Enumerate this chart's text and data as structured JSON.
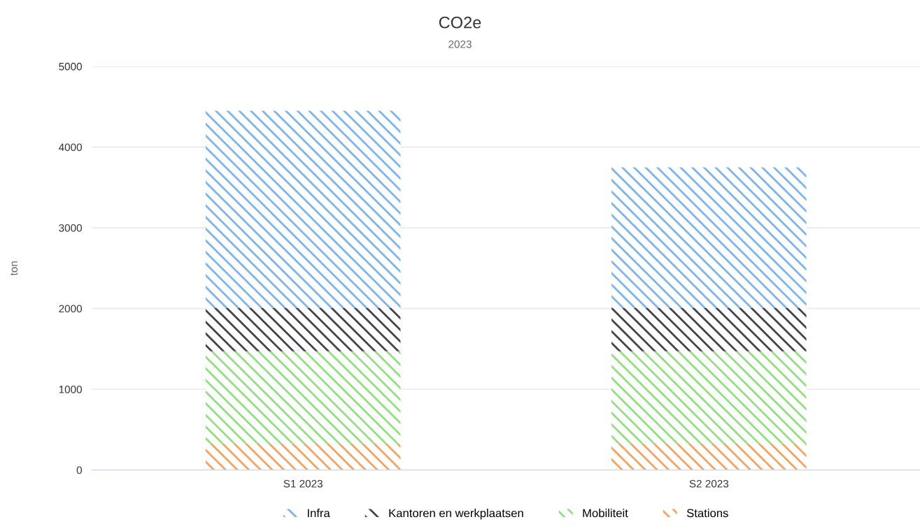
{
  "chart_data": {
    "type": "bar",
    "title": "CO2e",
    "subtitle": "2023",
    "ylabel": "ton",
    "stacked": true,
    "categories": [
      "S1 2023",
      "S2 2023"
    ],
    "series": [
      {
        "name": "Stations",
        "color": "#f4a460",
        "values": [
          330,
          330
        ]
      },
      {
        "name": "Mobiliteit",
        "color": "#90e080",
        "values": [
          1140,
          1140
        ]
      },
      {
        "name": "Kantoren en werkplaatsen",
        "color": "#434348",
        "values": [
          540,
          540
        ]
      },
      {
        "name": "Infra",
        "color": "#7cb5ec",
        "values": [
          2440,
          1740
        ]
      }
    ],
    "ylim": [
      0,
      5000
    ],
    "yticks": [
      0,
      1000,
      2000,
      3000,
      4000,
      5000
    ],
    "grid": "y",
    "legend": "bottom"
  }
}
